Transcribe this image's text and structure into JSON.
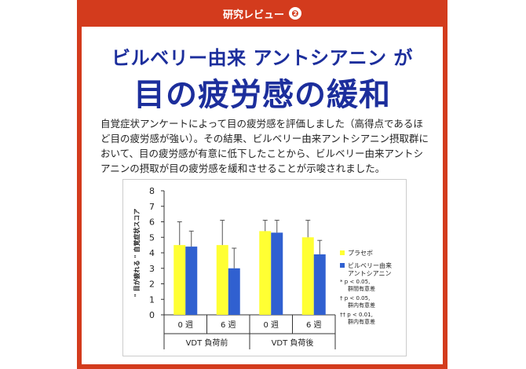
{
  "header": {
    "title": "研究レビュー",
    "badge": "❷"
  },
  "headline": {
    "subtitle": "ビルベリー由来 アントシアニン が",
    "title": "目の疲労感の緩和"
  },
  "body": {
    "text": "自覚症状アンケートによって目の疲労感を評価しました（高得点であるほど目の疲労感が強い）。その結果、ビルベリー由来アントシアニン摂取群において、目の疲労感が有意に低下したことから、ビルベリー由来アントシアニンの摂取が目の疲労感を緩和させることが示唆されました。"
  },
  "colors": {
    "accent": "#d33b1d",
    "title_blue": "#1c2e9c",
    "placebo": "#ffff33",
    "anthocyanin": "#3060d0"
  },
  "chart_data": {
    "type": "bar",
    "ylabel": "\" 目が疲れる \" 自覚症状スコア",
    "ylim": [
      0,
      8
    ],
    "yticks": [
      "0",
      "1",
      "2",
      "3",
      "4",
      "5",
      "6",
      "7",
      "8"
    ],
    "categories": [
      "0 週",
      "6 週",
      "0 週",
      "6 週"
    ],
    "groups": [
      {
        "label": "VDT 負荷前"
      },
      {
        "label": "VDT 負荷後"
      }
    ],
    "series": [
      {
        "name": "プラセボ",
        "color": "#ffff33",
        "values": [
          4.5,
          4.5,
          5.4,
          5.0
        ],
        "err_hi": [
          6.0,
          6.1,
          6.1,
          6.1
        ]
      },
      {
        "name": "ビルベリー由来\nアントシアニン",
        "color": "#3060d0",
        "values": [
          4.4,
          3.0,
          5.3,
          3.9
        ],
        "err_hi": [
          5.4,
          4.3,
          6.1,
          4.8
        ]
      }
    ],
    "footnotes": [
      "* p < 0.05,",
      "群間有意差",
      "† p < 0.05,",
      "群内有意差",
      "†† p < 0.01,",
      "群内有意差"
    ]
  }
}
